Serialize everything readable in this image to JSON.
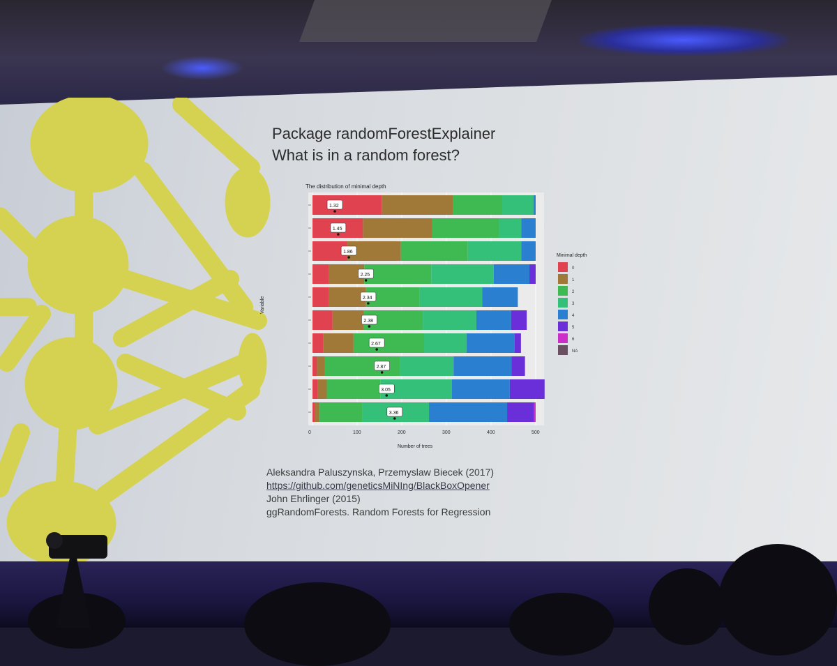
{
  "slide": {
    "title_line1": "Package randomForestExplainer",
    "title_line2": "What is in a random forest?",
    "references": [
      "Aleksandra Paluszynska, Przemyslaw Biecek (2017)",
      "https://github.com/geneticsMiNIng/BlackBoxOpener",
      "John Ehrlinger (2015)",
      "ggRandomForests. Random Forests for Regression"
    ]
  },
  "colors": {
    "screen_bg": "#dde0e3",
    "graphic_yellow": "#d4d250",
    "depth": [
      "#e0424f",
      "#a07838",
      "#3fba52",
      "#35c07a",
      "#2b7fd0",
      "#6a2fd8",
      "#cc2ec8",
      "#6a5060"
    ]
  },
  "chart_data": {
    "type": "bar",
    "subtype": "stacked-horizontal",
    "title": "The distribution of minimal depth",
    "xlabel": "Number of trees",
    "ylabel": "Variable",
    "xlim": [
      0,
      500
    ],
    "xticks": [
      "0",
      "100",
      "200",
      "300",
      "400",
      "500"
    ],
    "categories": [
      "",
      "",
      "",
      "",
      "",
      "",
      "",
      "",
      "",
      ""
    ],
    "mean_labels": [
      "1.32",
      "1.45",
      "1.86",
      "2.25",
      "2.34",
      "2.38",
      "2.67",
      "2.87",
      "3.05",
      "3.36"
    ],
    "series": [
      {
        "name": "0",
        "values": [
          155,
          113,
          78,
          36,
          36,
          45,
          24,
          10,
          12,
          6
        ]
      },
      {
        "name": "1",
        "values": [
          160,
          155,
          120,
          80,
          84,
          70,
          68,
          18,
          20,
          10
        ]
      },
      {
        "name": "2",
        "values": [
          110,
          150,
          150,
          150,
          120,
          132,
          158,
          168,
          120,
          95
        ]
      },
      {
        "name": "3",
        "values": [
          70,
          50,
          120,
          140,
          140,
          120,
          95,
          120,
          160,
          150
        ]
      },
      {
        "name": "4",
        "values": [
          5,
          32,
          32,
          80,
          80,
          78,
          108,
          130,
          130,
          175
        ]
      },
      {
        "name": "5",
        "values": [
          0,
          0,
          0,
          14,
          0,
          35,
          14,
          30,
          78,
          60
        ]
      },
      {
        "name": "6",
        "values": [
          0,
          0,
          0,
          0,
          0,
          0,
          0,
          0,
          0,
          4
        ]
      },
      {
        "name": "NA",
        "values": [
          0,
          0,
          0,
          0,
          0,
          0,
          0,
          0,
          0,
          0
        ]
      }
    ],
    "legend": {
      "title": "Minimal depth",
      "placement": "right",
      "entries": [
        "0",
        "1",
        "2",
        "3",
        "4",
        "5",
        "6",
        "NA"
      ]
    },
    "grid": true
  }
}
